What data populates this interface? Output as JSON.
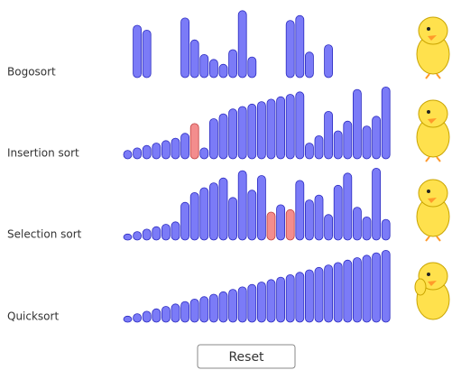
{
  "rows": [
    {
      "label": "Bogosort",
      "bars": [
        null,
        20,
        18,
        null,
        null,
        null,
        23,
        14,
        8,
        6,
        4,
        10,
        26,
        7,
        null,
        null,
        null,
        22,
        24,
        9,
        null,
        12,
        null,
        null,
        null,
        null,
        null,
        null
      ],
      "highlight": []
    },
    {
      "label": "Insertion sort",
      "bars": [
        2,
        3,
        4,
        5,
        6,
        7,
        9,
        13,
        3,
        15,
        17,
        19,
        20,
        21,
        22,
        23,
        24,
        25,
        26,
        5,
        8,
        18,
        10,
        14,
        27,
        12,
        16,
        28
      ],
      "highlight": [
        7
      ]
    },
    {
      "label": "Selection sort",
      "bars": [
        1,
        2,
        3,
        4,
        5,
        6,
        14,
        18,
        20,
        22,
        24,
        16,
        27,
        19,
        25,
        10,
        13,
        11,
        23,
        15,
        17,
        9,
        21,
        26,
        12,
        8,
        28,
        7
      ],
      "highlight": [
        15,
        17
      ]
    },
    {
      "label": "Quicksort",
      "bars": [
        1,
        2,
        3,
        4,
        5,
        6,
        7,
        8,
        9,
        10,
        11,
        12,
        13,
        14,
        15,
        16,
        17,
        18,
        19,
        20,
        21,
        22,
        23,
        24,
        25,
        26,
        27,
        28
      ],
      "highlight": []
    }
  ],
  "bar_color": "#5a5af5",
  "highlight_color": "#f07070",
  "reset": "Reset"
}
